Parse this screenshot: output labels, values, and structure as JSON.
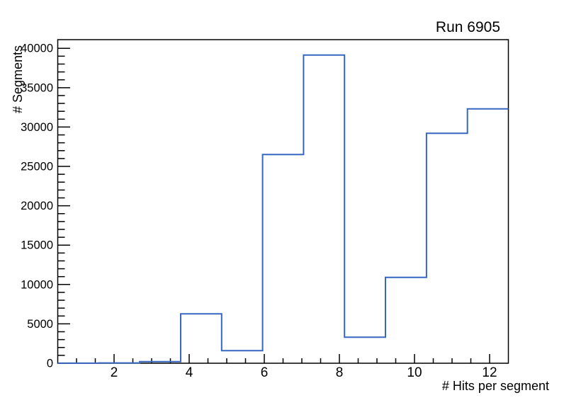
{
  "chart_data": {
    "type": "histogram-step",
    "title": "Run 6905",
    "xlabel": "# Hits per segment",
    "ylabel": "# Segments",
    "xlim": [
      0.5,
      12.5
    ],
    "ylim": [
      0,
      41100
    ],
    "n_bins": 11,
    "bin_edges": [
      0.5,
      1.5909,
      2.6818,
      3.7727,
      4.8636,
      5.9545,
      7.0455,
      8.1364,
      9.2273,
      10.3182,
      11.4091,
      12.5
    ],
    "counts": [
      10,
      40,
      200,
      6270,
      1600,
      26500,
      39150,
      3300,
      10900,
      29200,
      32300
    ],
    "x_major_ticks": [
      2,
      4,
      6,
      8,
      10,
      12
    ],
    "x_major_tick_labels": [
      "2",
      "4",
      "6",
      "8",
      "10",
      "12"
    ],
    "x_minor_ticks": [
      1,
      1.5,
      2.5,
      3,
      3.5,
      4.5,
      5,
      5.5,
      6.5,
      7,
      7.5,
      8.5,
      9,
      9.5,
      10.5,
      11,
      11.5
    ],
    "y_major_ticks": [
      0,
      5000,
      10000,
      15000,
      20000,
      25000,
      30000,
      35000,
      40000
    ],
    "y_major_tick_labels": [
      "0",
      "5000",
      "10000",
      "15000",
      "20000",
      "25000",
      "30000",
      "35000",
      "40000"
    ],
    "y_minor_step": 1000,
    "grid": false,
    "legend": null,
    "line_color": "#3767c1",
    "frame_color": "#000000",
    "background_color": "#ffffff",
    "text_color": "#000000"
  }
}
